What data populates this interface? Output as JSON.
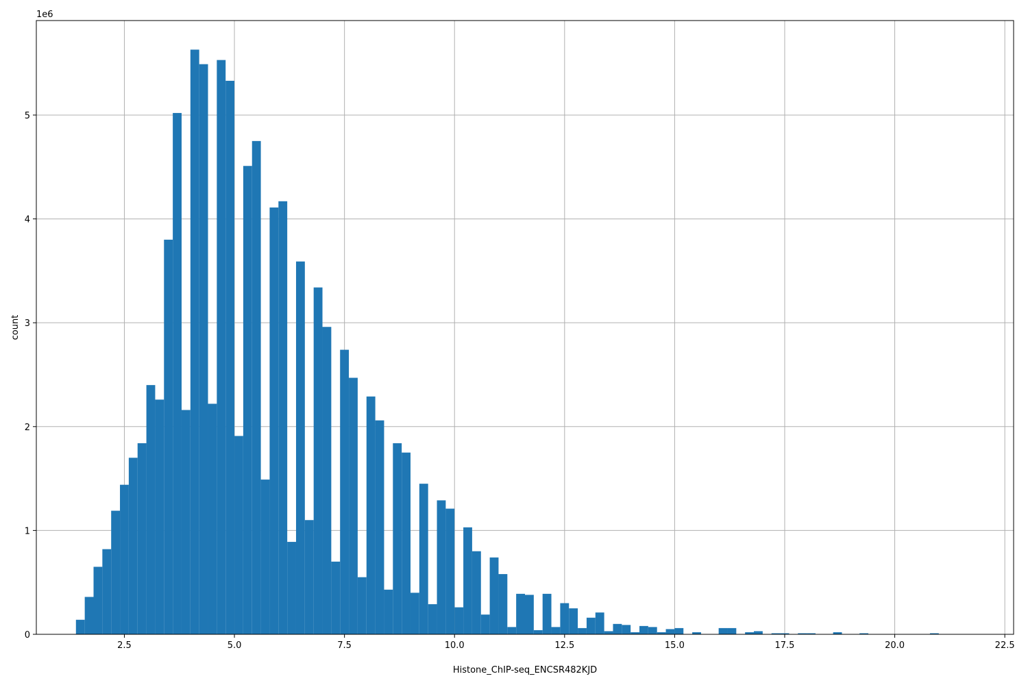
{
  "chart_data": {
    "type": "bar",
    "xlabel": "Histone_ChIP-seq_ENCSR482KJD",
    "ylabel": "count",
    "y_scale_label": "1e6",
    "xlim": [
      0.5,
      22.7
    ],
    "ylim": [
      0,
      5.91
    ],
    "x_ticks": [
      2.5,
      5.0,
      7.5,
      10.0,
      12.5,
      15.0,
      17.5,
      20.0,
      22.5
    ],
    "x_tick_labels": [
      "2.5",
      "5.0",
      "7.5",
      "10.0",
      "12.5",
      "15.0",
      "17.5",
      "20.0",
      "22.5"
    ],
    "y_ticks": [
      0,
      1,
      2,
      3,
      4,
      5
    ],
    "y_tick_labels": [
      "0",
      "1",
      "2",
      "3",
      "4",
      "5"
    ],
    "grid": true,
    "bar_color": "#1f77b4",
    "bin_start": 1.4,
    "bin_width": 0.2,
    "values": [
      0.14,
      0.36,
      0.65,
      0.82,
      1.19,
      1.44,
      1.7,
      1.84,
      2.4,
      2.26,
      3.8,
      5.02,
      2.16,
      5.63,
      5.49,
      2.22,
      5.53,
      5.33,
      1.91,
      4.51,
      4.75,
      1.49,
      4.11,
      4.17,
      0.89,
      3.59,
      1.1,
      3.34,
      2.96,
      0.7,
      2.74,
      2.47,
      0.55,
      2.29,
      2.06,
      0.43,
      1.84,
      1.75,
      0.4,
      1.45,
      0.29,
      1.29,
      1.21,
      0.26,
      1.03,
      0.8,
      0.19,
      0.74,
      0.58,
      0.07,
      0.39,
      0.38,
      0.04,
      0.39,
      0.07,
      0.3,
      0.25,
      0.06,
      0.16,
      0.21,
      0.03,
      0.1,
      0.09,
      0.02,
      0.08,
      0.07,
      0.02,
      0.05,
      0.06,
      0.0,
      0.02,
      0.0,
      0.0,
      0.06,
      0.06,
      0.0,
      0.02,
      0.03,
      0.0,
      0.01,
      0.01,
      0.0,
      0.01,
      0.01,
      0.0,
      0.0,
      0.02,
      0.0,
      0.0,
      0.01,
      0.0,
      0.0,
      0.0,
      0.0,
      0.0,
      0.0,
      0.0,
      0.01,
      0.0,
      0.0,
      0.0,
      0.0,
      0.0,
      0.0
    ]
  }
}
